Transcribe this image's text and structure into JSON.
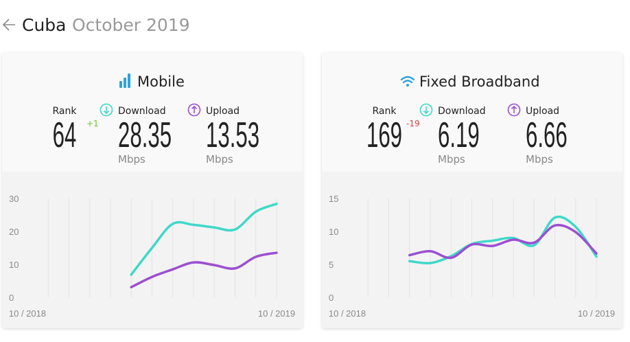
{
  "header": {
    "title": "Cuba",
    "subtitle": "October 2019"
  },
  "panels": [
    {
      "title": "Mobile",
      "rank": {
        "label": "Rank",
        "value": 64,
        "change": "+1"
      },
      "download": {
        "value": 28.35,
        "unit": "Mbps"
      },
      "upload": {
        "value": 13.53,
        "unit": "Mbps"
      }
    },
    {
      "title": "Fixed Broadband",
      "rank": {
        "label": "Rank",
        "value": 169,
        "change": "-19"
      },
      "download": {
        "value": 6.19,
        "unit": "Mbps"
      },
      "upload": {
        "value": 6.66,
        "unit": "Mbps"
      }
    }
  ],
  "chart_data": [
    {
      "type": "line",
      "categories": [
        "10 / 2018",
        null,
        null,
        null,
        null,
        null,
        null,
        null,
        null,
        null,
        null,
        null,
        "10 / 2019"
      ],
      "ylim": [
        0,
        30
      ],
      "yticks": [
        0,
        10,
        20,
        30
      ],
      "series": [
        {
          "name": "Download",
          "color": "#3fd8c9",
          "values": [
            null,
            null,
            null,
            null,
            null,
            6.9,
            15,
            22.3,
            22,
            21.2,
            20.6,
            26,
            28.35
          ]
        },
        {
          "name": "Upload",
          "color": "#9b4fd0",
          "values": [
            null,
            null,
            null,
            null,
            null,
            3.1,
            6.2,
            8.5,
            10.6,
            9.8,
            8.8,
            12.3,
            13.53
          ]
        }
      ]
    },
    {
      "type": "line",
      "categories": [
        "10 / 2018",
        null,
        null,
        null,
        null,
        null,
        null,
        null,
        null,
        null,
        null,
        null,
        "10 / 2019"
      ],
      "ylim": [
        0,
        15
      ],
      "yticks": [
        0,
        5,
        10,
        15
      ],
      "series": [
        {
          "name": "Download",
          "color": "#3fd8c9",
          "values": [
            null,
            null,
            null,
            5.5,
            5.2,
            6.25,
            8.1,
            8.6,
            9.0,
            7.9,
            12.1,
            10.7,
            6.19
          ]
        },
        {
          "name": "Upload",
          "color": "#9b4fd0",
          "values": [
            null,
            null,
            null,
            6.4,
            7.0,
            6.0,
            8.0,
            7.8,
            8.75,
            8.3,
            10.9,
            9.9,
            6.66
          ]
        }
      ]
    }
  ]
}
